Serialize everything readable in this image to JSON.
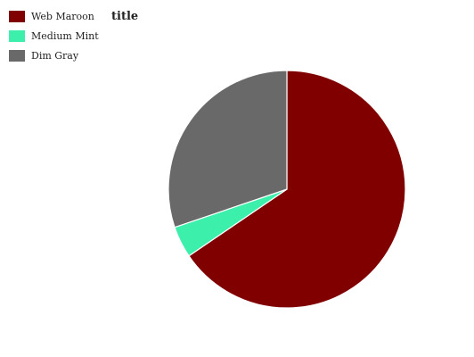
{
  "chart_data": {
    "type": "pie",
    "title": "title",
    "legend_position": "top-left",
    "start_angle_deg": 90,
    "direction": "clockwise",
    "slices": [
      {
        "label": "Web Maroon",
        "value": 65.5,
        "color": "#800000"
      },
      {
        "label": "Medium Mint",
        "value": 4.3,
        "color": "#3CEFAA"
      },
      {
        "label": "Dim Gray",
        "value": 30.2,
        "color": "#696969"
      }
    ]
  }
}
